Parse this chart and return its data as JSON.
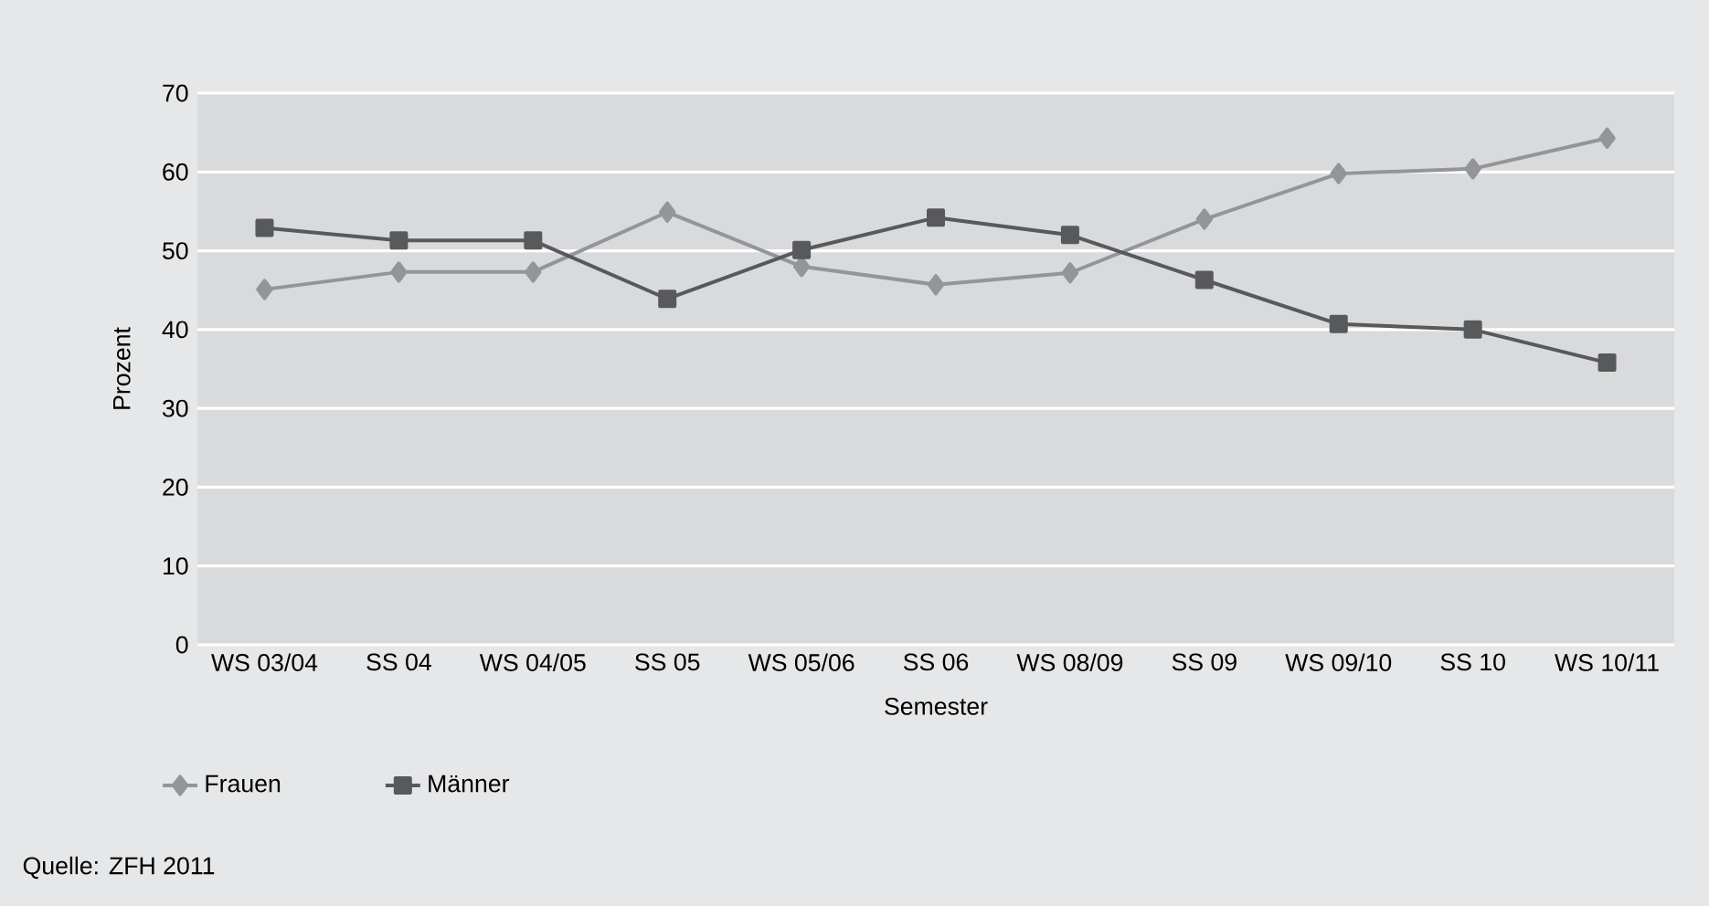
{
  "chart_data": {
    "type": "line",
    "xlabel": "Semester",
    "ylabel": "Prozent",
    "annotations": [
      "Quelle: ZFH 2011"
    ],
    "categories": [
      "WS 03/04",
      "SS 04",
      "WS 04/05",
      "SS 05",
      "WS 05/06",
      "SS 06",
      "WS 08/09",
      "SS 09",
      "WS 09/10",
      "SS 10",
      "WS 10/11"
    ],
    "series": [
      {
        "name": "Frauen",
        "color": "#939598",
        "marker": "diamond",
        "values": [
          45.1,
          47.3,
          47.3,
          54.9,
          48.0,
          45.7,
          47.2,
          54.0,
          59.8,
          60.4,
          64.3
        ]
      },
      {
        "name": "Männer",
        "color": "#58595b",
        "marker": "square",
        "values": [
          52.9,
          51.3,
          51.3,
          43.9,
          50.1,
          54.2,
          52.0,
          46.3,
          40.7,
          40.0,
          35.8
        ]
      }
    ],
    "ylim": [
      0,
      70
    ],
    "yticks": [
      0,
      10,
      20,
      30,
      40,
      50,
      60,
      70
    ],
    "grid": "y",
    "legend": "bottom left",
    "line_style": "solid"
  }
}
